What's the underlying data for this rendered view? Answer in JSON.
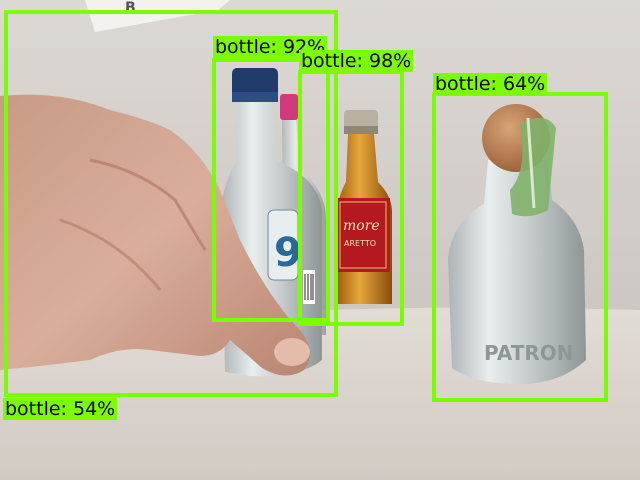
{
  "colors": {
    "box": "#7cfc00",
    "label_bg": "#7cfc00",
    "label_text": "#000000"
  },
  "scene": {
    "objects": [
      "hand",
      "small-vodka-bottle",
      "small-pink-cap-bottle",
      "amaretto-bottle",
      "tequila-bottle-with-cork",
      "white-card"
    ],
    "bottle_labels": {
      "amaretto_brand": "more",
      "amaretto_sub": "ARETTO",
      "vodka_number": "9",
      "tequila_emboss": "PATRON"
    }
  },
  "detections": [
    {
      "label": "bottle: 54%"
    },
    {
      "label": "bottle: 92%"
    },
    {
      "label": "bottle: 98%"
    },
    {
      "label": "bottle: 64%"
    }
  ]
}
